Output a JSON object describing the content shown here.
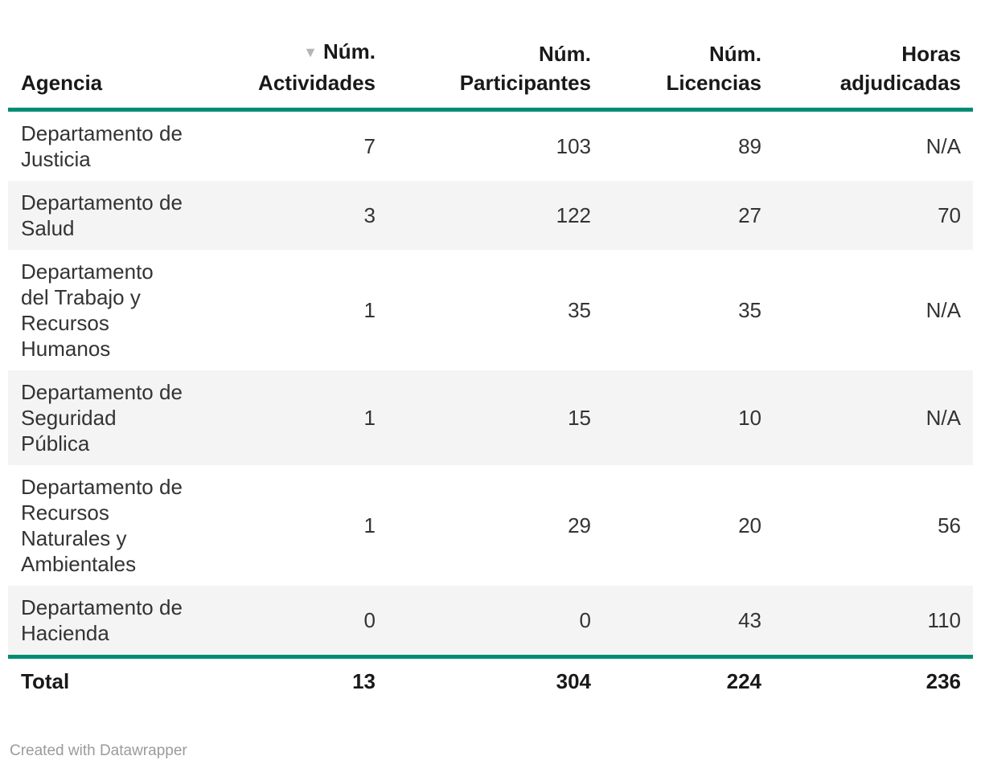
{
  "colors": {
    "accent_rule": "#008c73",
    "row_stripe": "#f4f4f4",
    "header_text": "#191919",
    "body_text": "#333333",
    "sort_icon": "#b5b5b5",
    "footer_text": "#9b9b9b"
  },
  "icons": {
    "sort_descending": "▼"
  },
  "chart_data": {
    "type": "table",
    "columns": [
      {
        "id": "agencia",
        "label": "Agencia",
        "align": "left",
        "sorted": false
      },
      {
        "id": "actividades",
        "label": "Núm.\nActividades",
        "align": "right",
        "sorted": true,
        "sort_direction": "descending"
      },
      {
        "id": "participantes",
        "label": "Núm.\nParticipantes",
        "align": "right",
        "sorted": false
      },
      {
        "id": "licencias",
        "label": "Núm.\nLicencias",
        "align": "right",
        "sorted": false
      },
      {
        "id": "horas",
        "label": "Horas\nadjudicadas",
        "align": "right",
        "sorted": false
      }
    ],
    "rows": [
      {
        "agencia": "Departamento de Justicia",
        "actividades": "7",
        "participantes": "103",
        "licencias": "89",
        "horas": "N/A"
      },
      {
        "agencia": "Departamento de Salud",
        "actividades": "3",
        "participantes": "122",
        "licencias": "27",
        "horas": "70"
      },
      {
        "agencia": "Departamento del Trabajo y Recursos Humanos",
        "actividades": "1",
        "participantes": "35",
        "licencias": "35",
        "horas": "N/A"
      },
      {
        "agencia": "Departamento de Seguridad Pública",
        "actividades": "1",
        "participantes": "15",
        "licencias": "10",
        "horas": "N/A"
      },
      {
        "agencia": "Departamento de Recursos Naturales y Ambientales",
        "actividades": "1",
        "participantes": "29",
        "licencias": "20",
        "horas": "56"
      },
      {
        "agencia": "Departamento de Hacienda",
        "actividades": "0",
        "participantes": "0",
        "licencias": "43",
        "horas": "110"
      }
    ],
    "total_row": {
      "agencia": "Total",
      "actividades": "13",
      "participantes": "304",
      "licencias": "224",
      "horas": "236"
    }
  },
  "footer": {
    "attribution": "Created with Datawrapper"
  }
}
